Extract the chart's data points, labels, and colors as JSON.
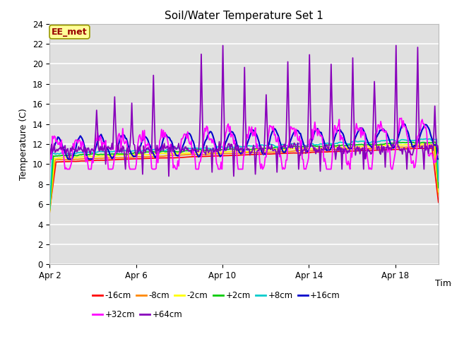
{
  "title": "Soil/Water Temperature Set 1",
  "xlabel": "Time",
  "ylabel": "Temperature (C)",
  "ylim": [
    0,
    24
  ],
  "yticks": [
    0,
    2,
    4,
    6,
    8,
    10,
    12,
    14,
    16,
    18,
    20,
    22,
    24
  ],
  "bg_color": "#e0e0e0",
  "fig_bg_color": "#ffffff",
  "series": [
    {
      "label": "-16cm",
      "color": "#ff0000"
    },
    {
      "label": "-8cm",
      "color": "#ff8800"
    },
    {
      "label": "-2cm",
      "color": "#ffff00"
    },
    {
      "label": "+2cm",
      "color": "#00cc00"
    },
    {
      "label": "+8cm",
      "color": "#00cccc"
    },
    {
      "label": "+16cm",
      "color": "#0000cc"
    },
    {
      "label": "+32cm",
      "color": "#ff00ff"
    },
    {
      "label": "+64cm",
      "color": "#8800bb"
    }
  ],
  "annotation": "EE_met",
  "annotation_color": "#990000",
  "annotation_bg": "#ffff99",
  "annotation_border": "#999900",
  "xtick_dates": [
    "Apr 2",
    "Apr 6",
    "Apr 10",
    "Apr 14",
    "Apr 18"
  ],
  "xtick_days": [
    0,
    4,
    8,
    12,
    16
  ],
  "n_days": 18,
  "n_per_day": 24
}
